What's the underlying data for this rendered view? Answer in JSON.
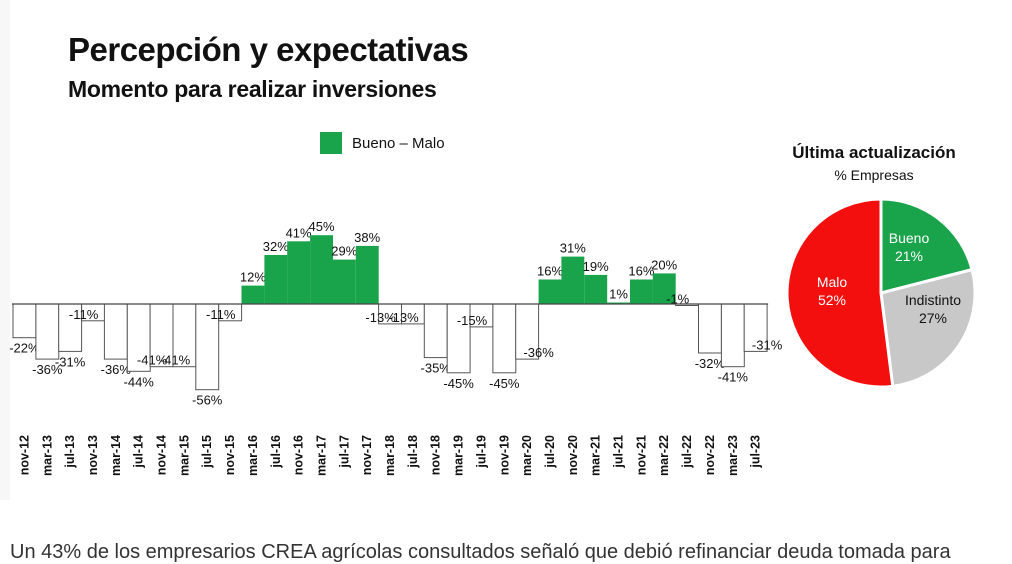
{
  "title": "Percepción y expectativas",
  "subtitle": "Momento para realizar inversiones",
  "legend_label": "Bueno – Malo",
  "colors": {
    "positive": "#19a34a",
    "negative": "#ffffff",
    "bar_outline": "#555555",
    "malo": "#f40f0f",
    "indistinto": "#c8c8c8"
  },
  "chart_data": [
    {
      "type": "bar",
      "title": "Percepción y expectativas",
      "subtitle": "Momento para realizar inversiones",
      "categories": [
        "nov-12",
        "mar-13",
        "jul-13",
        "nov-13",
        "mar-14",
        "jul-14",
        "nov-14",
        "mar-15",
        "jul-15",
        "nov-15",
        "mar-16",
        "jul-16",
        "nov-16",
        "mar-17",
        "jul-17",
        "nov-17",
        "mar-18",
        "jul-18",
        "nov-18",
        "mar-19",
        "jul-19",
        "nov-19",
        "mar-20",
        "jul-20",
        "nov-20",
        "mar-21",
        "jul-21",
        "nov-21",
        "mar-22",
        "jul-22",
        "nov-22",
        "mar-23",
        "jul-23"
      ],
      "series": [
        {
          "name": "Bueno – Malo",
          "values": [
            -22,
            -36,
            -31,
            -11,
            -36,
            -44,
            -41,
            -41,
            -56,
            -11,
            12,
            32,
            41,
            45,
            29,
            38,
            -13,
            -13,
            -35,
            -45,
            -15,
            -45,
            -36,
            16,
            31,
            19,
            1,
            16,
            20,
            -1,
            -32,
            -41,
            -31
          ],
          "labels": [
            "-22%",
            "-36%",
            "-31%",
            "-11%",
            "-36%",
            "-44%",
            "-41%",
            "-41%",
            "-56%",
            "-11%",
            "12%",
            "32%",
            "41%",
            "45%",
            "29%",
            "38%",
            "-13%",
            "-13%",
            "-35%",
            "-45%",
            "-15%",
            "-45%",
            "-36%",
            "16%",
            "31%",
            "19%",
            "1%",
            "16%",
            "20%",
            "-1%",
            "-32%",
            "-41%",
            "-31%"
          ]
        }
      ],
      "ylim": [
        -60,
        50
      ],
      "grid": false,
      "legend": "top-center"
    },
    {
      "type": "pie",
      "title": "Última actualización",
      "subtitle": "% Empresas",
      "slices": [
        {
          "label": "Bueno",
          "value": 21,
          "text": "21%",
          "color": "#19a34a"
        },
        {
          "label": "Indistinto",
          "value": 27,
          "text": "27%",
          "color": "#c8c8c8"
        },
        {
          "label": "Malo",
          "value": 52,
          "text": "52%",
          "color": "#f40f0f"
        }
      ]
    }
  ],
  "paragraph": "Un 43% de los empresarios CREA agrícolas consultados señaló que debió refinanciar deuda tomada para"
}
